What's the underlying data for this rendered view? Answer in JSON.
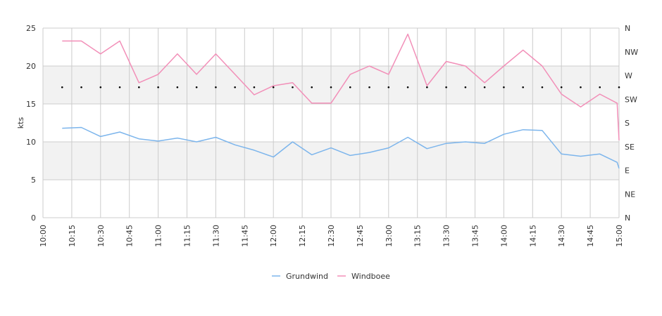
{
  "chart_data": {
    "type": "line",
    "ylabel": "kts",
    "ylim": [
      0,
      25
    ],
    "y_ticks": [
      "0",
      "5",
      "10",
      "15",
      "20",
      "25"
    ],
    "x_ticks": [
      "10:00",
      "10:15",
      "10:30",
      "10:45",
      "11:00",
      "11:15",
      "11:30",
      "11:45",
      "12:00",
      "12:15",
      "12:30",
      "12:45",
      "13:00",
      "13:15",
      "13:30",
      "13:45",
      "14:00",
      "14:15",
      "14:30",
      "14:45",
      "15:00"
    ],
    "x_range": [
      "10:00",
      "15:00"
    ],
    "right_axis_labels": [
      "N",
      "NW",
      "W",
      "SW",
      "S",
      "SE",
      "E",
      "NE",
      "N"
    ],
    "grid": true,
    "legend_position": "bottom",
    "x": [
      "10:10",
      "10:20",
      "10:30",
      "10:40",
      "10:50",
      "11:00",
      "11:10",
      "11:20",
      "11:30",
      "11:40",
      "11:50",
      "12:00",
      "12:10",
      "12:20",
      "12:30",
      "12:40",
      "12:50",
      "13:00",
      "13:10",
      "13:20",
      "13:30",
      "13:40",
      "13:50",
      "14:00",
      "14:10",
      "14:20",
      "14:30",
      "14:40",
      "14:50",
      "14:59",
      "15:00"
    ],
    "series": [
      {
        "name": "Grundwind",
        "color": "#7cb5ec",
        "values": [
          11.8,
          11.9,
          10.7,
          11.3,
          10.4,
          10.1,
          10.5,
          10.0,
          10.6,
          9.6,
          8.9,
          8.0,
          10.0,
          8.3,
          9.2,
          8.2,
          8.6,
          9.2,
          10.6,
          9.1,
          9.8,
          10.0,
          9.8,
          11.0,
          11.6,
          11.5,
          8.4,
          8.1,
          8.4,
          7.3,
          6.5
        ]
      },
      {
        "name": "Windboee",
        "color": "#f28fb8",
        "values": [
          23.3,
          23.3,
          21.6,
          23.3,
          17.8,
          18.9,
          21.6,
          18.9,
          21.6,
          18.9,
          16.2,
          17.4,
          17.8,
          15.1,
          15.1,
          18.9,
          20.0,
          18.9,
          24.2,
          17.4,
          20.6,
          20.0,
          17.8,
          20.0,
          22.1,
          20.0,
          16.3,
          14.6,
          16.3,
          15.1,
          10.2
        ]
      }
    ],
    "direction_markers": {
      "name": "direction",
      "color": "#000000",
      "x": [
        "10:10",
        "10:20",
        "10:30",
        "10:40",
        "10:50",
        "11:00",
        "11:10",
        "11:20",
        "11:30",
        "11:40",
        "11:50",
        "12:00",
        "12:10",
        "12:20",
        "12:30",
        "12:40",
        "12:50",
        "13:00",
        "13:10",
        "13:20",
        "13:30",
        "13:40",
        "13:50",
        "14:00",
        "14:10",
        "14:20",
        "14:30",
        "14:40",
        "14:50",
        "15:00"
      ],
      "values": [
        17.2,
        17.2,
        17.2,
        17.2,
        17.2,
        17.2,
        17.2,
        17.2,
        17.2,
        17.2,
        17.2,
        17.2,
        17.2,
        17.2,
        17.2,
        17.2,
        17.2,
        17.2,
        17.2,
        17.2,
        17.2,
        17.2,
        17.2,
        17.2,
        17.2,
        17.2,
        17.2,
        17.2,
        17.2,
        17.2
      ]
    },
    "band_color": "#f2f2f2",
    "grid_color": "#cccccc"
  }
}
